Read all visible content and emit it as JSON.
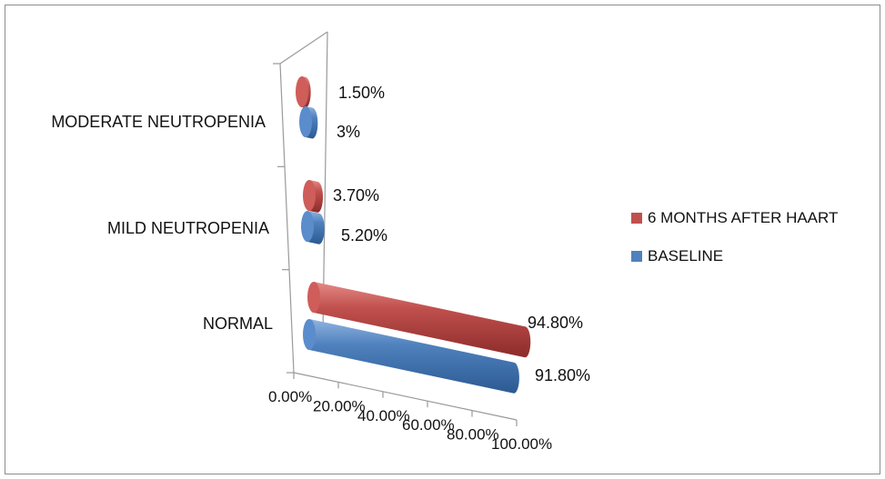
{
  "chart_data": {
    "type": "bar",
    "orientation": "horizontal",
    "style": "3d-cylinder",
    "categories": [
      "NORMAL",
      "MILD NEUTROPENIA",
      "MODERATE NEUTROPENIA"
    ],
    "series": [
      {
        "name": "BASELINE",
        "color": "#4f81bd",
        "values": [
          91.8,
          5.2,
          3.0
        ],
        "labels": [
          "91.80%",
          "5.20%",
          "3%"
        ]
      },
      {
        "name": "6 MONTHS AFTER HAART",
        "color": "#c0504d",
        "values": [
          94.8,
          3.7,
          1.5
        ],
        "labels": [
          "94.80%",
          "3.70%",
          "1.50%"
        ]
      }
    ],
    "x_ticks": [
      "0.00%",
      "20.00%",
      "40.00%",
      "60.00%",
      "80.00%",
      "100.00%"
    ],
    "xlim": [
      0,
      100
    ],
    "legend_position": "right",
    "legend_order": [
      "6 MONTHS AFTER HAART",
      "BASELINE"
    ],
    "grid": false
  }
}
